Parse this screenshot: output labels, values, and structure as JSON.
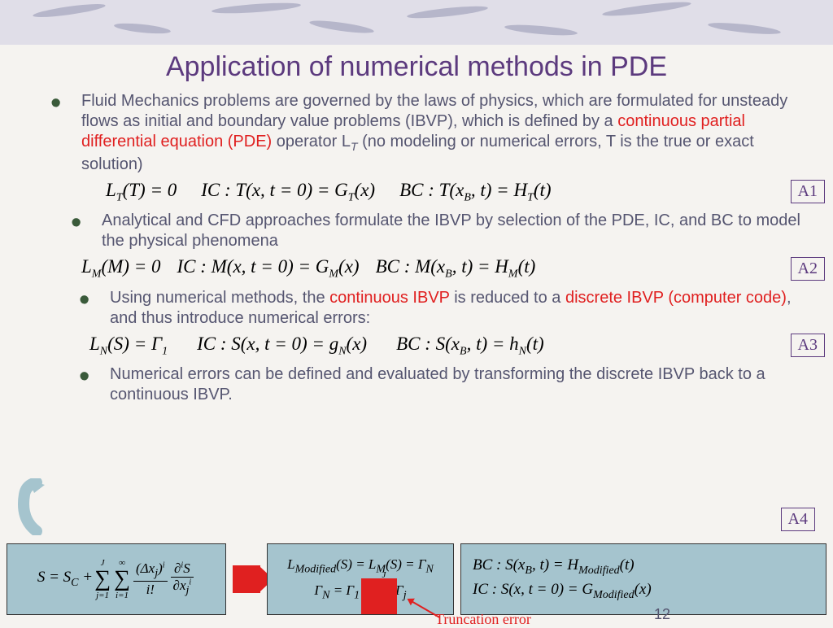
{
  "title": "Application of numerical methods in PDE",
  "bullets": {
    "b1_pre": "Fluid Mechanics problems are governed by the laws of physics, which are formulated for unsteady flows as initial and boundary value problems (IBVP), which is defined by a ",
    "b1_red": "continuous partial differential equation (PDE)",
    "b1_post": " operator L",
    "b1_sub": "T",
    "b1_tail": " (no modeling or numerical errors, T is the true or exact solution)",
    "b2": "Analytical and CFD approaches formulate the IBVP by selection of the PDE, IC, and BC to model the physical phenomena",
    "b3_pre": "Using numerical methods, the ",
    "b3_red1": "continuous IBVP",
    "b3_mid": " is reduced to a ",
    "b3_red2": "discrete IBVP (computer code)",
    "b3_post": ", and thus introduce numerical errors:",
    "b4": "Numerical errors can be defined and evaluated by transforming the discrete IBVP back to a continuous IBVP."
  },
  "equations": {
    "a1": {
      "l": "L<sub>T</sub>(T) = 0",
      "ic": "IC : T(x, t = 0) = G<sub>T</sub>(x)",
      "bc": "BC : T(x<sub>B</sub>, t) = H<sub>T</sub>(t)",
      "tag": "A1"
    },
    "a2": {
      "l": "L<sub>M</sub>(M) = 0",
      "ic": "IC : M(x, t = 0) = G<sub>M</sub>(x)",
      "bc": "BC : M(x<sub>B</sub>, t) = H<sub>M</sub>(t)",
      "tag": "A2"
    },
    "a3": {
      "l": "L<sub>N</sub>(S) = Γ<sub>1</sub>",
      "ic": "IC : S(x, t = 0) = g<sub>N</sub>(x)",
      "bc": "BC : S(x<sub>B</sub>, t) = h<sub>N</sub>(t)",
      "tag": "A3"
    },
    "a4_tag": "A4"
  },
  "bottom": {
    "box1": "S = S<sub>C</sub> +",
    "box2_top": "L<sub>Modified</sub>(S) = L<sub>M</sub>(S) = Γ<sub>N</sub>",
    "box2_bot": "Γ<sub>N</sub> = Γ<sub>1</sub> +",
    "box3_top": "BC : S(x<sub>B</sub>, t) = H<sub>Modified</sub>(t)",
    "box3_bot": "IC : S(x, t = 0) = G<sub>Modified</sub>(x)",
    "trunc": "Truncation error"
  },
  "page_number": "12",
  "colors": {
    "title": "#5c3a7e",
    "body_text": "#555570",
    "bullet": "#3a5a3a",
    "highlight": "#e02020",
    "box_bg": "#a5c4ce",
    "banner_bg": "#e0dee8",
    "page_bg": "#f5f3f0"
  }
}
